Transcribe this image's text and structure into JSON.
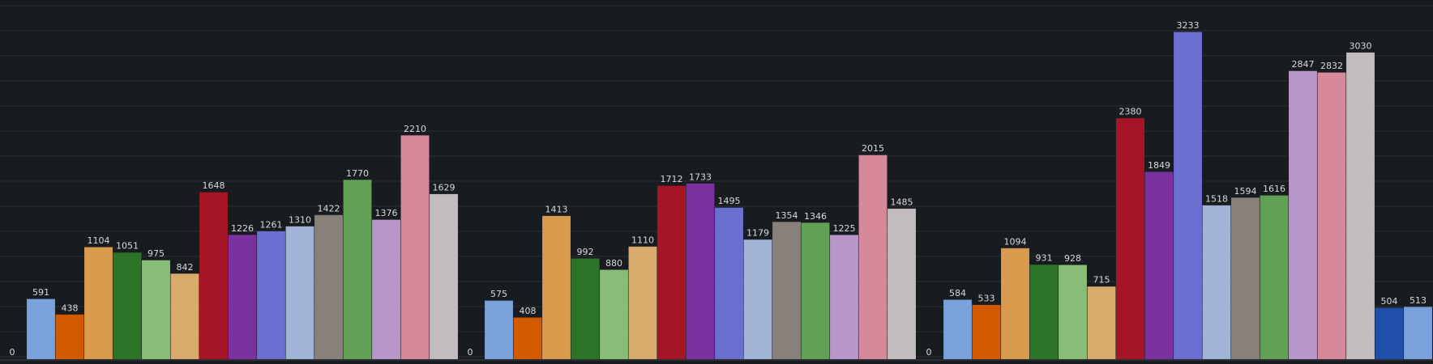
{
  "chart_data": {
    "type": "bar",
    "ylim": [
      0,
      3500
    ],
    "grid": true,
    "legend": "none",
    "series_colors": [
      "#1f60c4",
      "#7aa1dc",
      "#d45a00",
      "#d99a4e",
      "#2d7327",
      "#88bd78",
      "#d8ab6d",
      "#a61526",
      "#7b32a0",
      "#6b6fd0",
      "#a2b4d5",
      "#88817a",
      "#62a056",
      "#b996c9",
      "#d6899a",
      "#c2bcbe"
    ],
    "groups": [
      {
        "values": [
          0,
          591,
          438,
          1104,
          1051,
          975,
          842,
          1648,
          1226,
          1261,
          1310,
          1422,
          1770,
          1376,
          2210,
          1629
        ]
      },
      {
        "values": [
          0,
          575,
          408,
          1413,
          992,
          880,
          1110,
          1712,
          1733,
          1495,
          1179,
          1354,
          1346,
          1225,
          2015,
          1485
        ]
      },
      {
        "values": [
          0,
          584,
          533,
          1094,
          931,
          928,
          715,
          2380,
          1849,
          3233,
          1518,
          1594,
          1616,
          2847,
          2832,
          3030,
          504,
          513
        ]
      }
    ],
    "extra_colors": [
      "#1f4fa8",
      "#7aa1dc"
    ]
  }
}
